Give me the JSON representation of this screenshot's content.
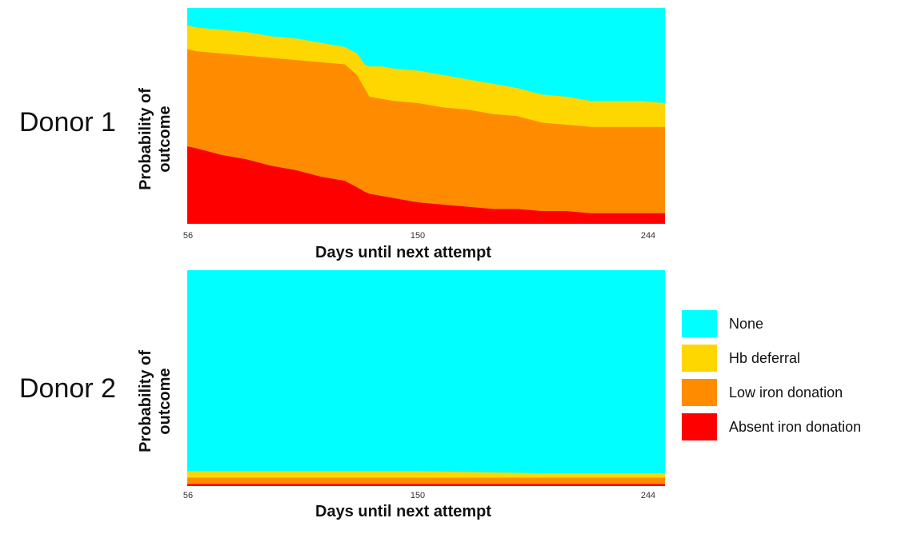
{
  "chart_data": [
    {
      "type": "area",
      "title": "Donor 1",
      "xlabel": "Days until next attempt",
      "ylabel": "Probability of\noutcome",
      "xticks": [
        56,
        150,
        244
      ],
      "xlim": [
        56,
        250
      ],
      "ylim": [
        0,
        1
      ],
      "x": [
        56,
        60,
        70,
        80,
        90,
        100,
        110,
        120,
        125,
        128,
        130,
        135,
        140,
        150,
        160,
        170,
        180,
        190,
        200,
        210,
        220,
        230,
        240,
        250
      ],
      "series": [
        {
          "name": "Absent iron donation",
          "values": [
            0.36,
            0.35,
            0.32,
            0.3,
            0.27,
            0.25,
            0.22,
            0.2,
            0.17,
            0.15,
            0.14,
            0.13,
            0.12,
            0.1,
            0.09,
            0.08,
            0.07,
            0.07,
            0.06,
            0.06,
            0.05,
            0.05,
            0.05,
            0.05
          ]
        },
        {
          "name": "Low iron donation",
          "values": [
            0.45,
            0.45,
            0.47,
            0.48,
            0.5,
            0.51,
            0.53,
            0.54,
            0.52,
            0.48,
            0.45,
            0.45,
            0.45,
            0.46,
            0.45,
            0.45,
            0.44,
            0.43,
            0.41,
            0.4,
            0.4,
            0.4,
            0.4,
            0.4
          ]
        },
        {
          "name": "Hb deferral",
          "values": [
            0.11,
            0.11,
            0.11,
            0.11,
            0.1,
            0.1,
            0.09,
            0.08,
            0.1,
            0.11,
            0.14,
            0.15,
            0.15,
            0.15,
            0.15,
            0.14,
            0.14,
            0.13,
            0.13,
            0.13,
            0.12,
            0.12,
            0.12,
            0.11
          ]
        },
        {
          "name": "None",
          "values": [
            0.08,
            0.09,
            0.1,
            0.11,
            0.13,
            0.14,
            0.16,
            0.18,
            0.21,
            0.26,
            0.27,
            0.27,
            0.28,
            0.29,
            0.31,
            0.33,
            0.35,
            0.37,
            0.4,
            0.41,
            0.43,
            0.43,
            0.43,
            0.44
          ]
        }
      ]
    },
    {
      "type": "area",
      "title": "Donor 2",
      "xlabel": "Days until next attempt",
      "ylabel": "Probability of\noutcome",
      "xticks": [
        56,
        150,
        244
      ],
      "xlim": [
        56,
        250
      ],
      "ylim": [
        0,
        1
      ],
      "x": [
        56,
        100,
        150,
        200,
        250
      ],
      "series": [
        {
          "name": "Absent iron donation",
          "values": [
            0.01,
            0.01,
            0.01,
            0.01,
            0.01
          ]
        },
        {
          "name": "Low iron donation",
          "values": [
            0.03,
            0.03,
            0.03,
            0.03,
            0.03
          ]
        },
        {
          "name": "Hb deferral",
          "values": [
            0.03,
            0.03,
            0.03,
            0.02,
            0.02
          ]
        },
        {
          "name": "None",
          "values": [
            0.93,
            0.93,
            0.93,
            0.94,
            0.94
          ]
        }
      ]
    }
  ],
  "legend": {
    "placement": "right",
    "items": [
      {
        "label": "None",
        "color": "#00FFFF"
      },
      {
        "label": "Hb deferral",
        "color": "#FFD700"
      },
      {
        "label": "Low iron donation",
        "color": "#FF8C00"
      },
      {
        "label": "Absent iron donation",
        "color": "#FF0000"
      }
    ]
  },
  "colors": {
    "Absent iron donation": "#FF0000",
    "Low iron donation": "#FF8C00",
    "Hb deferral": "#FFD700",
    "None": "#00FFFF"
  }
}
